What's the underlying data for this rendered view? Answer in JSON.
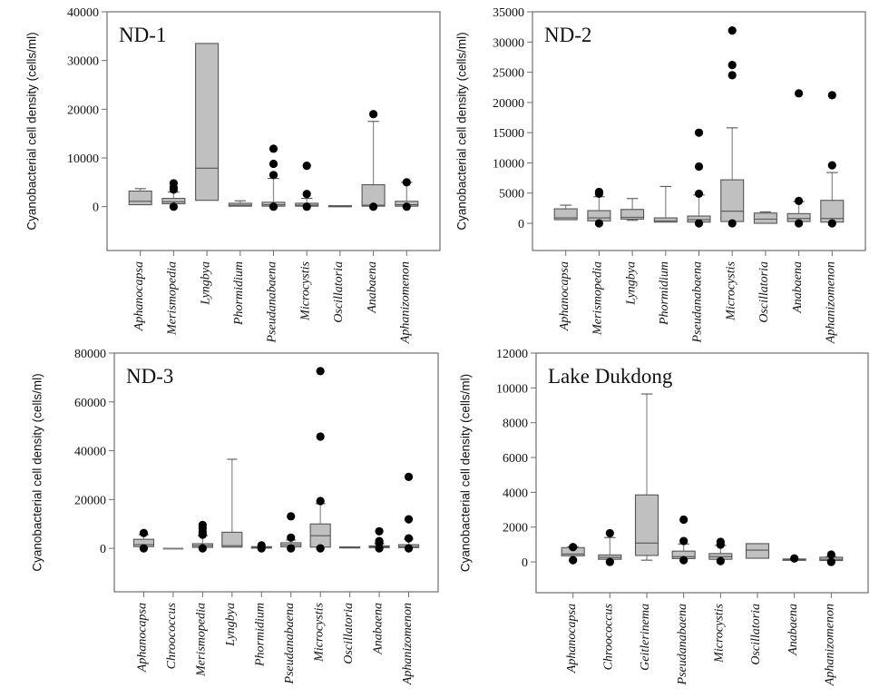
{
  "chart_data": [
    {
      "type": "box",
      "title": "ND-1",
      "ylabel": "Cyanobacterial cell density (cells/ml)",
      "xlabel": "",
      "ylim": [
        -9000,
        40000
      ],
      "yticks": [
        0,
        10000,
        20000,
        30000,
        40000
      ],
      "categories": [
        "Aphanocapsa",
        "Merismopedia",
        "Lyngbya",
        "Phormidium",
        "Pseudanabaena",
        "Microcystis",
        "Oscillatoria",
        "Anabaena",
        "Aphanizomenon"
      ],
      "boxes": [
        {
          "whislo": 400,
          "q1": 400,
          "med": 1100,
          "q3": 3200,
          "whishi": 3700,
          "fliers": []
        },
        {
          "whislo": 600,
          "q1": 600,
          "med": 1000,
          "q3": 1700,
          "whishi": 3000,
          "fliers": [
            4800,
            3900,
            3500,
            0
          ]
        },
        {
          "whislo": 1300,
          "q1": 1300,
          "med": 7900,
          "q3": 33500,
          "whishi": 33500,
          "fliers": []
        },
        {
          "whislo": 100,
          "q1": 100,
          "med": 300,
          "q3": 700,
          "whishi": 1200,
          "fliers": []
        },
        {
          "whislo": 100,
          "q1": 100,
          "med": 400,
          "q3": 900,
          "whishi": 5800,
          "fliers": [
            11900,
            8800,
            6500,
            0
          ]
        },
        {
          "whislo": 100,
          "q1": 100,
          "med": 300,
          "q3": 700,
          "whishi": 1700,
          "fliers": [
            8400,
            2600,
            0
          ]
        },
        {
          "whislo": 100,
          "q1": 100,
          "med": 150,
          "q3": 200,
          "whishi": 200,
          "fliers": []
        },
        {
          "whislo": 100,
          "q1": 100,
          "med": 300,
          "q3": 4500,
          "whishi": 17500,
          "fliers": [
            19000,
            0
          ]
        },
        {
          "whislo": 100,
          "q1": 100,
          "med": 400,
          "q3": 1100,
          "whishi": 5000,
          "fliers": [
            5000,
            0
          ]
        }
      ]
    },
    {
      "type": "box",
      "title": "ND-2",
      "ylabel": "Cyanobacterial cell density (cells/ml)",
      "xlabel": "",
      "ylim": [
        -4500,
        35000
      ],
      "yticks": [
        0,
        5000,
        10000,
        15000,
        20000,
        25000,
        30000,
        35000
      ],
      "categories": [
        "Aphanocapsa",
        "Merismopedia",
        "Lyngbya",
        "Phormidium",
        "Pseudanabaena",
        "Microcystis",
        "Oscillatoria",
        "Anabaena",
        "Aphanizomenon"
      ],
      "boxes": [
        {
          "whislo": 600,
          "q1": 600,
          "med": 900,
          "q3": 2400,
          "whishi": 3000,
          "fliers": []
        },
        {
          "whislo": 400,
          "q1": 400,
          "med": 900,
          "q3": 2100,
          "whishi": 4400,
          "fliers": [
            5200,
            4900,
            0
          ]
        },
        {
          "whislo": 500,
          "q1": 700,
          "med": 1000,
          "q3": 2300,
          "whishi": 4100,
          "fliers": []
        },
        {
          "whislo": 200,
          "q1": 200,
          "med": 400,
          "q3": 900,
          "whishi": 6100,
          "fliers": []
        },
        {
          "whislo": 200,
          "q1": 200,
          "med": 600,
          "q3": 1200,
          "whishi": 4700,
          "fliers": [
            15000,
            9400,
            4900,
            0
          ]
        },
        {
          "whislo": 300,
          "q1": 300,
          "med": 2000,
          "q3": 7200,
          "whishi": 15800,
          "fliers": [
            31900,
            26200,
            24500,
            0
          ]
        },
        {
          "whislo": 0,
          "q1": 0,
          "med": 700,
          "q3": 1700,
          "whishi": 1900,
          "fliers": []
        },
        {
          "whislo": 300,
          "q1": 300,
          "med": 800,
          "q3": 1600,
          "whishi": 3600,
          "fliers": [
            21500,
            3700,
            0
          ]
        },
        {
          "whislo": 200,
          "q1": 200,
          "med": 800,
          "q3": 3800,
          "whishi": 8400,
          "fliers": [
            21200,
            9600,
            0
          ]
        }
      ]
    },
    {
      "type": "box",
      "title": "ND-3",
      "ylabel": "Cyanobacterial cell density (cells/ml)",
      "xlabel": "",
      "ylim": [
        -17800,
        80000
      ],
      "yticks": [
        0,
        20000,
        40000,
        60000,
        80000
      ],
      "categories": [
        "Aphanocapsa",
        "Chroococcus",
        "Merismopedia",
        "Lyngbya",
        "Phormidium",
        "Pseudanabaena",
        "Microcystis",
        "Oscillatoria",
        "Anabaena",
        "Aphanizomenon"
      ],
      "boxes": [
        {
          "whislo": 700,
          "q1": 700,
          "med": 1500,
          "q3": 3700,
          "whishi": 5600,
          "fliers": [
            6300,
            0
          ]
        },
        {
          "whislo": 0,
          "q1": 0,
          "med": 0,
          "q3": 0,
          "whishi": 0,
          "fliers": []
        },
        {
          "whislo": 400,
          "q1": 400,
          "med": 1100,
          "q3": 1900,
          "whishi": 5200,
          "fliers": [
            9600,
            8300,
            6800,
            5600,
            0
          ]
        },
        {
          "whislo": 500,
          "q1": 500,
          "med": 1100,
          "q3": 6600,
          "whishi": 36500,
          "fliers": []
        },
        {
          "whislo": 100,
          "q1": 100,
          "med": 400,
          "q3": 700,
          "whishi": 700,
          "fliers": [
            1200,
            0
          ]
        },
        {
          "whislo": 600,
          "q1": 600,
          "med": 1400,
          "q3": 2300,
          "whishi": 3400,
          "fliers": [
            13100,
            4400,
            0
          ]
        },
        {
          "whislo": 500,
          "q1": 500,
          "med": 5200,
          "q3": 10000,
          "whishi": 18300,
          "fliers": [
            72600,
            45800,
            19400,
            0
          ]
        },
        {
          "whislo": 400,
          "q1": 400,
          "med": 500,
          "q3": 600,
          "whishi": 600,
          "fliers": []
        },
        {
          "whislo": 300,
          "q1": 300,
          "med": 600,
          "q3": 1000,
          "whishi": 1900,
          "fliers": [
            7000,
            3000,
            2300,
            0
          ]
        },
        {
          "whislo": 300,
          "q1": 300,
          "med": 700,
          "q3": 1500,
          "whishi": 3800,
          "fliers": [
            29300,
            11900,
            4100,
            0
          ]
        }
      ]
    },
    {
      "type": "box",
      "title": "Lake Dukdong",
      "ylabel": "Cyanobacterial cell density (cells/ml)",
      "xlabel": "",
      "ylim": [
        -1770,
        12000
      ],
      "yticks": [
        0,
        2000,
        4000,
        6000,
        8000,
        10000,
        12000
      ],
      "categories": [
        "Aphanocapsa",
        "Chroococcus",
        "Geitlerinema",
        "Pseudanabaena",
        "Microcystis",
        "Oscillatoria",
        "Anabaena",
        "Aphanizomenon"
      ],
      "boxes": [
        {
          "whislo": 350,
          "q1": 350,
          "med": 450,
          "q3": 820,
          "whishi": 880,
          "fliers": [
            850,
            100
          ]
        },
        {
          "whislo": 150,
          "q1": 150,
          "med": 260,
          "q3": 400,
          "whishi": 1400,
          "fliers": [
            1650,
            0
          ]
        },
        {
          "whislo": 100,
          "q1": 370,
          "med": 1080,
          "q3": 3850,
          "whishi": 9650,
          "fliers": []
        },
        {
          "whislo": 190,
          "q1": 190,
          "med": 300,
          "q3": 620,
          "whishi": 1030,
          "fliers": [
            2430,
            1200,
            100
          ]
        },
        {
          "whislo": 150,
          "q1": 150,
          "med": 300,
          "q3": 480,
          "whishi": 950,
          "fliers": [
            1150,
            990,
            50
          ]
        },
        {
          "whislo": 210,
          "q1": 210,
          "med": 680,
          "q3": 1050,
          "whishi": 1050,
          "fliers": []
        },
        {
          "whislo": 90,
          "q1": 90,
          "med": 130,
          "q3": 170,
          "whishi": 170,
          "fliers": [
            200
          ]
        },
        {
          "whislo": 80,
          "q1": 80,
          "med": 150,
          "q3": 270,
          "whishi": 300,
          "fliers": [
            420,
            0
          ]
        }
      ]
    }
  ]
}
